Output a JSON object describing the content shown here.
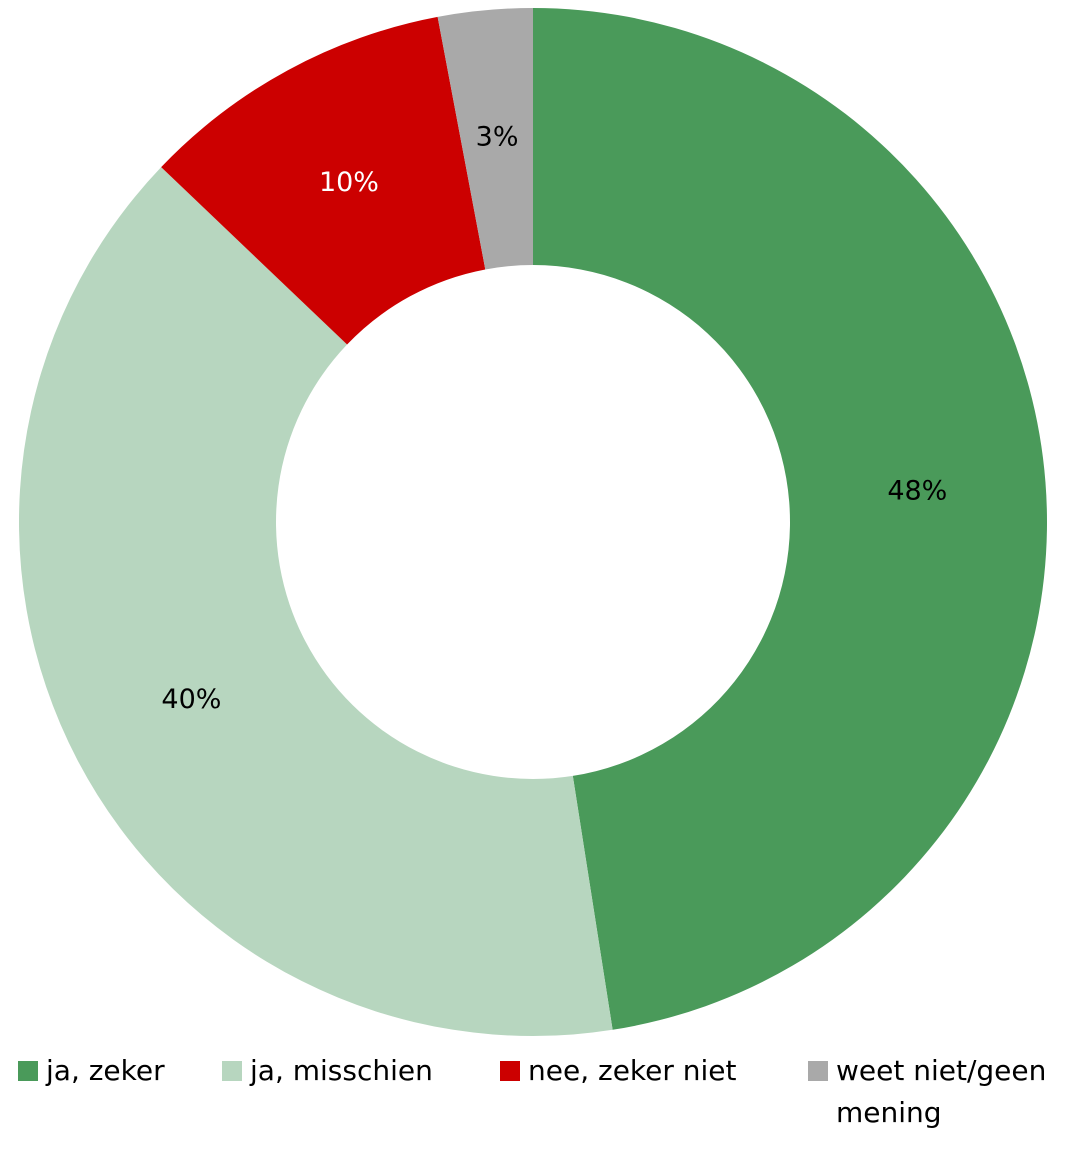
{
  "chart_data": {
    "type": "donut",
    "categories": [
      "ja, zeker",
      "ja, misschien",
      "nee, zeker niet",
      "weet niet/geen mening"
    ],
    "values": [
      48,
      40,
      10,
      3
    ],
    "value_labels": [
      "48%",
      "40%",
      "10%",
      "3%"
    ],
    "colors": [
      "#4a9a5a",
      "#b7d6bf",
      "#cc0000",
      "#a9a9a9"
    ],
    "label_colors": [
      "#000000",
      "#000000",
      "#ffffff",
      "#000000"
    ],
    "legend": "bottom"
  }
}
